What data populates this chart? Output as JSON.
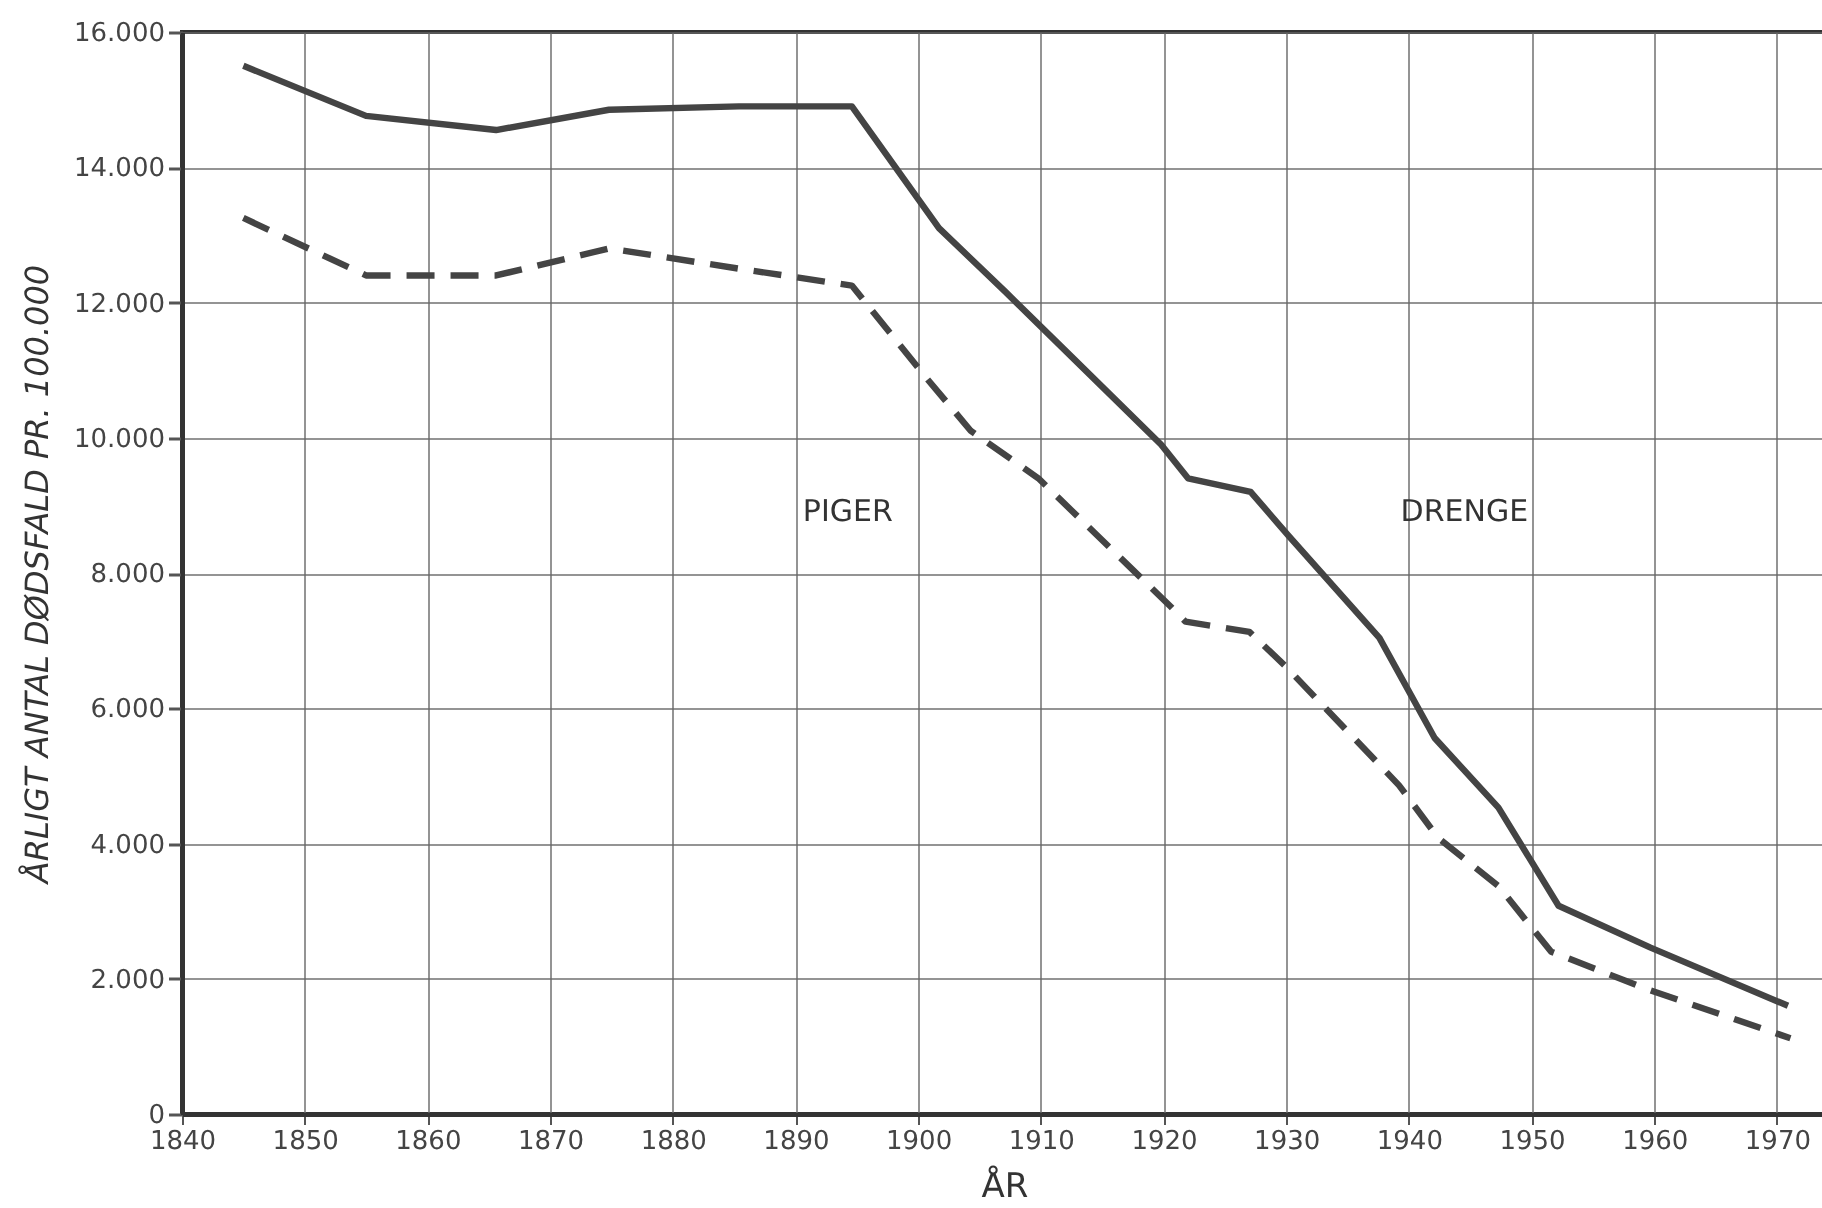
{
  "chart_data": {
    "type": "line",
    "xlabel": "ÅR",
    "ylabel": "ÅRLIGT ANTAL DØDSFALD PR. 100.000",
    "series": [
      {
        "color": "#444444",
        "line_style": "solid",
        "x": [
          1845,
          1855,
          1865.6,
          1874.8,
          1885.4,
          1894.6,
          1901.7,
          1907.1,
          1912.5,
          1919.8,
          1922,
          1927.1,
          1930.2,
          1937.6,
          1942.1,
          1947.3,
          1949.8,
          1952.2,
          1959.7,
          1970.9
        ],
        "values": [
          15500,
          14760,
          14550,
          14850,
          14900,
          14900,
          13100,
          12160,
          11200,
          9900,
          9400,
          9200,
          8550,
          7040,
          5560,
          4530,
          3790,
          3080,
          2460,
          1600
        ]
      },
      {
        "color": "#444444",
        "line_style": "dashed",
        "x": [
          1845,
          1855,
          1865.6,
          1874.8,
          1885.4,
          1894.6,
          1900.6,
          1904.3,
          1909.8,
          1920.6,
          1921.8,
          1927,
          1929.9,
          1939.2,
          1942.4,
          1947.3,
          1951.6,
          1959.2,
          1971.1
        ],
        "values": [
          13250,
          12400,
          12400,
          12800,
          12500,
          12250,
          10900,
          10100,
          9400,
          7500,
          7280,
          7130,
          6630,
          4860,
          4080,
          3370,
          2400,
          1860,
          1120
        ]
      }
    ],
    "annotations": [
      "PIGER",
      "DRENGE"
    ],
    "xlim": [
      1840,
      1974
    ],
    "xticks": [
      1840,
      1850,
      1860,
      1870,
      1880,
      1890,
      1900,
      1910,
      1920,
      1930,
      1940,
      1950,
      1960,
      1970
    ],
    "ylim": [
      0,
      16000
    ],
    "yticks": [
      0,
      {
        "value": 2000,
        "label": "2.000"
      },
      {
        "value": 4000,
        "label": "4.000"
      },
      {
        "value": 6000,
        "label": "6.000"
      },
      {
        "value": 8000,
        "label": "8.000"
      },
      {
        "value": 10000,
        "label": "10.000"
      },
      {
        "value": 12000,
        "label": "12.000"
      },
      {
        "value": 14000,
        "label": "14.000"
      },
      {
        "value": 16000,
        "label": "16.000"
      }
    ],
    "grid": true,
    "marker": "none"
  }
}
